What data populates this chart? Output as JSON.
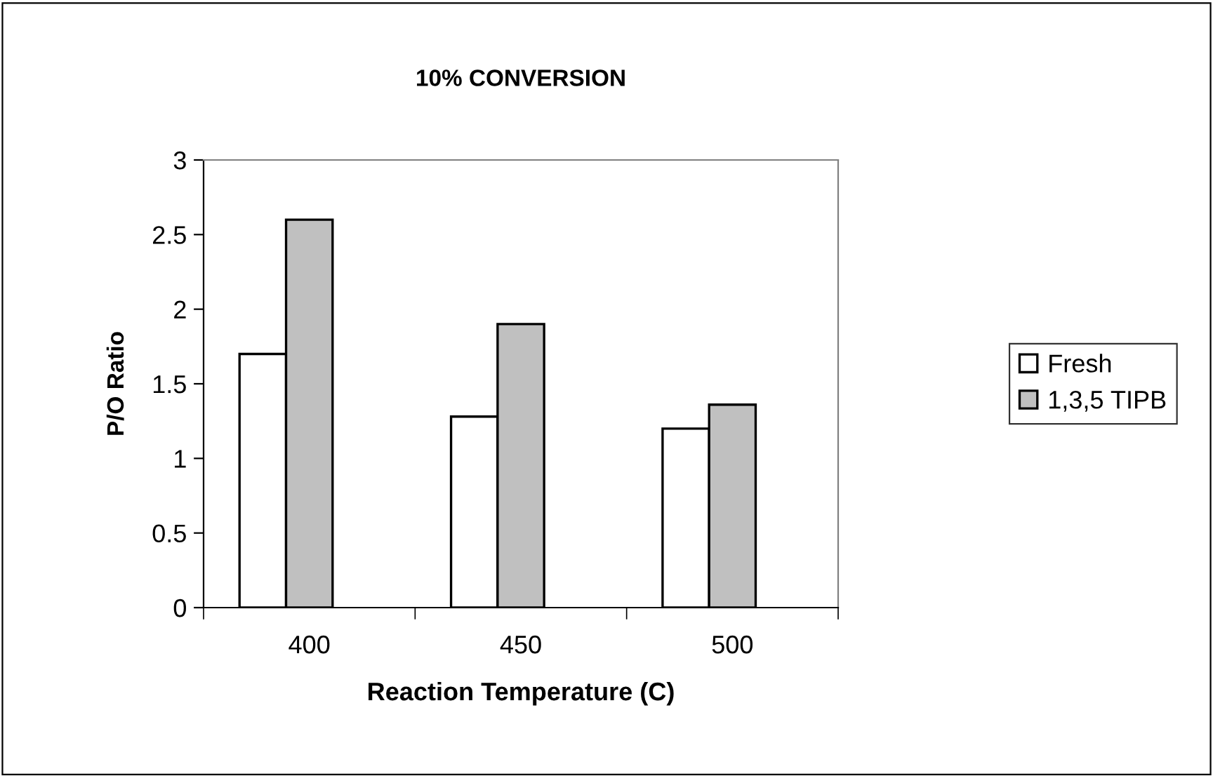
{
  "chart_data": {
    "type": "bar",
    "title": "10% CONVERSION",
    "xlabel": "Reaction Temperature (C)",
    "ylabel": "P/O Ratio",
    "categories": [
      "400",
      "450",
      "500"
    ],
    "series": [
      {
        "name": "Fresh",
        "color": "#ffffff",
        "values": [
          1.7,
          1.28,
          1.2
        ]
      },
      {
        "name": "1,3,5 TIPB",
        "color": "#c0c0c0",
        "values": [
          2.6,
          1.9,
          1.36
        ]
      }
    ],
    "ylim": [
      0,
      3
    ],
    "yticks": [
      0,
      0.5,
      1,
      1.5,
      2,
      2.5,
      3
    ],
    "grid": false,
    "legend": "right"
  }
}
